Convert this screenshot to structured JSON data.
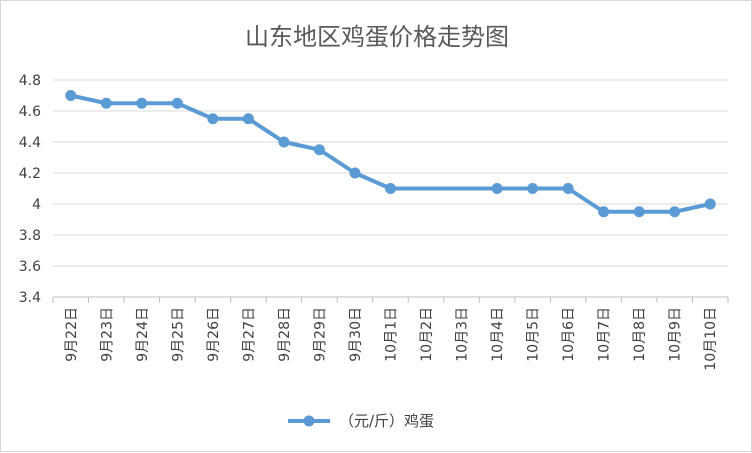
{
  "chart_data": {
    "type": "line",
    "title": "山东地区鸡蛋价格走势图",
    "categories": [
      "9月22日",
      "9月23日",
      "9月24日",
      "9月25日",
      "9月26日",
      "9月27日",
      "9月28日",
      "9月29日",
      "9月30日",
      "10月1日",
      "10月2日",
      "10月3日",
      "10月4日",
      "10月5日",
      "10月6日",
      "10月7日",
      "10月8日",
      "10月9日",
      "10月10日"
    ],
    "series": [
      {
        "name": "（元/斤）鸡蛋",
        "color": "#5b9bd5",
        "values": [
          4.7,
          4.65,
          4.65,
          4.65,
          4.55,
          4.55,
          4.4,
          4.35,
          4.2,
          4.1,
          null,
          null,
          4.1,
          4.1,
          4.1,
          3.95,
          3.95,
          3.95,
          4.0
        ]
      }
    ],
    "ylim": [
      3.4,
      4.8
    ],
    "yticks": [
      3.4,
      3.6,
      3.8,
      4,
      4.2,
      4.4,
      4.6,
      4.8
    ],
    "grid": true,
    "legend_position": "bottom"
  }
}
